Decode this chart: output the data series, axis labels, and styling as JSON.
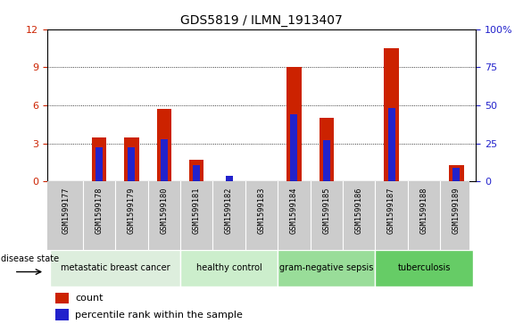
{
  "title": "GDS5819 / ILMN_1913407",
  "samples": [
    "GSM1599177",
    "GSM1599178",
    "GSM1599179",
    "GSM1599180",
    "GSM1599181",
    "GSM1599182",
    "GSM1599183",
    "GSM1599184",
    "GSM1599185",
    "GSM1599186",
    "GSM1599187",
    "GSM1599188",
    "GSM1599189"
  ],
  "count_values": [
    0.0,
    3.5,
    3.5,
    5.7,
    1.7,
    0.0,
    0.0,
    9.0,
    5.0,
    0.0,
    10.5,
    0.0,
    1.3
  ],
  "percentile_values": [
    0.0,
    22.5,
    22.5,
    27.5,
    11.0,
    3.5,
    0.0,
    44.0,
    27.0,
    0.0,
    48.0,
    0.0,
    9.0
  ],
  "ylim_left": [
    0,
    12
  ],
  "ylim_right": [
    0,
    100
  ],
  "yticks_left": [
    0,
    3,
    6,
    9,
    12
  ],
  "ytick_labels_left": [
    "0",
    "3",
    "6",
    "9",
    "12"
  ],
  "yticks_right": [
    0,
    25,
    50,
    75,
    100
  ],
  "ytick_labels_right": [
    "0",
    "25",
    "50",
    "75",
    "100%"
  ],
  "disease_groups": [
    {
      "label": "metastatic breast cancer",
      "start": 0,
      "end": 3,
      "color": "#ddeedd"
    },
    {
      "label": "healthy control",
      "start": 4,
      "end": 6,
      "color": "#cceecc"
    },
    {
      "label": "gram-negative sepsis",
      "start": 7,
      "end": 9,
      "color": "#99dd99"
    },
    {
      "label": "tuberculosis",
      "start": 10,
      "end": 12,
      "color": "#66cc66"
    }
  ],
  "bar_color_red": "#cc2200",
  "bar_color_blue": "#2222cc",
  "bar_width": 0.45,
  "percentile_bar_width": 0.22,
  "bg_color": "#ffffff",
  "tick_bg_color": "#cccccc",
  "left_axis_color": "#cc2200",
  "right_axis_color": "#2222cc",
  "disease_state_label": "disease state",
  "legend_count": "count",
  "legend_percentile": "percentile rank within the sample"
}
